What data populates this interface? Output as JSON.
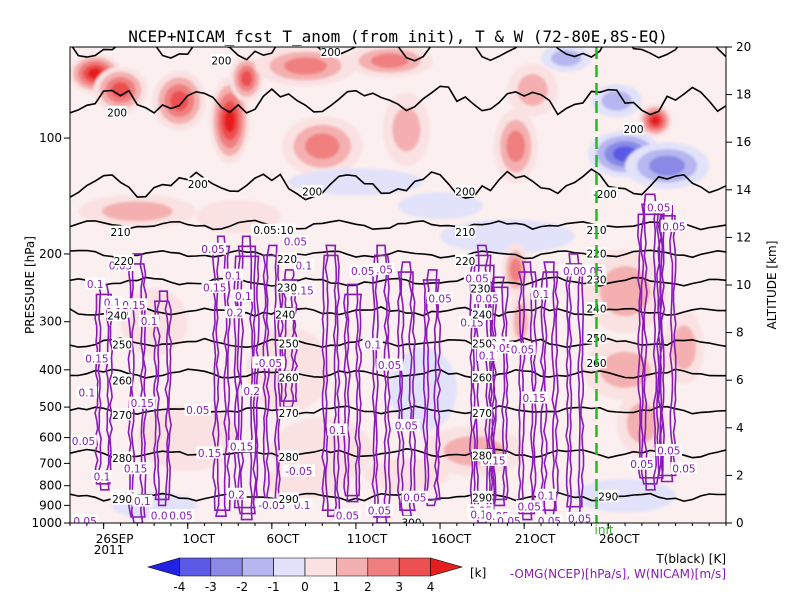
{
  "chart_data": {
    "type": "heatmap",
    "title": "NCEP+NICAM_fcst T_anom (from init), T & W  (72-80E,8S-EQ)",
    "xlabel": "",
    "ylabel_left": "PRESSURE [hPa]",
    "ylabel_right": "ALTITUDE [km]",
    "x_ticks": [
      "26SEP",
      "1OCT",
      "6OCT",
      "11OCT",
      "16OCT",
      "21OCT",
      "26OCT"
    ],
    "x_year": "2011",
    "init_label": "init",
    "x_range_days": [
      0,
      39
    ],
    "init_day": 31.3,
    "p_ticks": [
      100,
      200,
      300,
      400,
      500,
      600,
      700,
      800,
      900,
      1000
    ],
    "p_range_hpa": [
      1000,
      58
    ],
    "alt_ticks": [
      0,
      2,
      4,
      6,
      8,
      10,
      12,
      14,
      16,
      18,
      20
    ],
    "alt_range_km": [
      0,
      20
    ],
    "colorbar": {
      "ticks": [
        "-4",
        "-3",
        "-2",
        "-1",
        "0",
        "1",
        "2",
        "3",
        "4"
      ],
      "unit": "[k]",
      "colors": [
        "#2222e6",
        "#5a5ae6",
        "#8a8ae6",
        "#b6b6f0",
        "#e2e2fa",
        "#fae2e2",
        "#f4b0b0",
        "#f08080",
        "#ec5050",
        "#e61e1e"
      ]
    },
    "legend": {
      "temperature": "T(black) [K]",
      "wind": "-OMG(NCEP)[hPa/s], W(NICAM)[m/s]"
    },
    "temperature_contours": {
      "levels": [
        {
          "label": "200",
          "p": 58
        },
        {
          "label": "200",
          "p": 80
        },
        {
          "label": "200",
          "p": 132
        },
        {
          "label": "210",
          "p": 168
        },
        {
          "label": "220",
          "p": 200
        },
        {
          "label": "230",
          "p": 236
        },
        {
          "label": "240",
          "p": 282
        },
        {
          "label": "250",
          "p": 340
        },
        {
          "label": "260",
          "p": 410
        },
        {
          "label": "270",
          "p": 510
        },
        {
          "label": "280",
          "p": 660
        },
        {
          "label": "290",
          "p": 855
        }
      ]
    },
    "omega_labels": [
      "0.05",
      "0.1",
      "0.15",
      "0.2",
      "-0.05"
    ],
    "w_cells": [
      {
        "day": 2.0,
        "p_top": 240,
        "p_bot": 820,
        "intensity": 0.5
      },
      {
        "day": 4.0,
        "p_top": 200,
        "p_bot": 1000,
        "intensity": 0.7
      },
      {
        "day": 5.5,
        "p_top": 250,
        "p_bot": 900,
        "intensity": 0.6
      },
      {
        "day": 9.0,
        "p_top": 180,
        "p_bot": 960,
        "intensity": 0.5
      },
      {
        "day": 10.5,
        "p_top": 180,
        "p_bot": 980,
        "intensity": 0.8
      },
      {
        "day": 12.0,
        "p_top": 190,
        "p_bot": 900,
        "intensity": 0.6
      },
      {
        "day": 13.0,
        "p_top": 220,
        "p_bot": 500,
        "intensity": 0.4
      },
      {
        "day": 15.5,
        "p_top": 190,
        "p_bot": 960,
        "intensity": 0.6
      },
      {
        "day": 16.8,
        "p_top": 240,
        "p_bot": 880,
        "intensity": 0.5
      },
      {
        "day": 18.5,
        "p_top": 190,
        "p_bot": 1000,
        "intensity": 0.7
      },
      {
        "day": 20.0,
        "p_top": 210,
        "p_bot": 960,
        "intensity": 0.6
      },
      {
        "day": 21.5,
        "p_top": 220,
        "p_bot": 900,
        "intensity": 0.5
      },
      {
        "day": 24.5,
        "p_top": 190,
        "p_bot": 1000,
        "intensity": 0.8
      },
      {
        "day": 25.5,
        "p_top": 230,
        "p_bot": 900,
        "intensity": 0.6
      },
      {
        "day": 27.2,
        "p_top": 210,
        "p_bot": 980,
        "intensity": 0.6
      },
      {
        "day": 28.5,
        "p_top": 210,
        "p_bot": 960,
        "intensity": 0.5
      },
      {
        "day": 30.0,
        "p_top": 200,
        "p_bot": 940,
        "intensity": 0.7
      },
      {
        "day": 34.5,
        "p_top": 140,
        "p_bot": 820,
        "intensity": 0.9
      },
      {
        "day": 35.5,
        "p_top": 150,
        "p_bot": 780,
        "intensity": 0.6
      }
    ],
    "w_value_labels": [
      {
        "t": "0.05",
        "day": 3.0,
        "p": 215
      },
      {
        "t": "0.1",
        "day": 1.5,
        "p": 240
      },
      {
        "t": "0.1",
        "day": 2.5,
        "p": 268
      },
      {
        "t": "0.15",
        "day": 3.8,
        "p": 272
      },
      {
        "t": "0.15",
        "day": 2.8,
        "p": 284
      },
      {
        "t": "0.1",
        "day": 4.7,
        "p": 300
      },
      {
        "t": "0.15",
        "day": 1.6,
        "p": 375
      },
      {
        "t": "0.1",
        "day": 1.0,
        "p": 460
      },
      {
        "t": "0.15",
        "day": 4.3,
        "p": 490
      },
      {
        "t": "0.05",
        "day": 0.8,
        "p": 615
      },
      {
        "t": "0.15",
        "day": 3.9,
        "p": 725
      },
      {
        "t": "0.1",
        "day": 1.9,
        "p": 760
      },
      {
        "t": "0.05",
        "day": 3.2,
        "p": 855
      },
      {
        "t": "0.1",
        "day": 4.3,
        "p": 880
      },
      {
        "t": "0.05",
        "day": 5.5,
        "p": 960
      },
      {
        "t": "0.05",
        "day": 0.9,
        "p": 990
      },
      {
        "t": "0.05",
        "day": 6.6,
        "p": 960
      },
      {
        "t": "0.05",
        "day": 8.5,
        "p": 195
      },
      {
        "t": "0.1",
        "day": 9.7,
        "p": 228
      },
      {
        "t": "0.15",
        "day": 8.6,
        "p": 245
      },
      {
        "t": "0.1",
        "day": 10.3,
        "p": 258
      },
      {
        "t": "0.2",
        "day": 9.8,
        "p": 285
      },
      {
        "t": "0.2",
        "day": 10.8,
        "p": 455
      },
      {
        "t": "0.05",
        "day": 7.6,
        "p": 510
      },
      {
        "t": "-0.05",
        "day": 11.8,
        "p": 385
      },
      {
        "t": "0.15",
        "day": 10.2,
        "p": 635
      },
      {
        "t": "0.15",
        "day": 8.3,
        "p": 660
      },
      {
        "t": "0.2",
        "day": 9.9,
        "p": 845
      },
      {
        "t": "-0.05",
        "day": 12.0,
        "p": 900
      },
      {
        "t": "0.05",
        "day": 13.4,
        "p": 186
      },
      {
        "t": "0.1",
        "day": 13.9,
        "p": 215
      },
      {
        "t": "0.15",
        "day": 13.8,
        "p": 250
      },
      {
        "t": "-0.05",
        "day": 13.6,
        "p": 735
      },
      {
        "t": "0.1",
        "day": 13.8,
        "p": 900
      },
      {
        "t": "0.05",
        "day": 18.5,
        "p": 220
      },
      {
        "t": "0.05",
        "day": 17.4,
        "p": 222
      },
      {
        "t": "0.1",
        "day": 18.0,
        "p": 345
      },
      {
        "t": "0.05",
        "day": 19.0,
        "p": 390
      },
      {
        "t": "0.05",
        "day": 16.5,
        "p": 960
      },
      {
        "t": "0.1",
        "day": 15.9,
        "p": 575
      },
      {
        "t": "0.05",
        "day": 18.4,
        "p": 930
      },
      {
        "t": "0.05",
        "day": 20.0,
        "p": 560
      },
      {
        "t": "0.05",
        "day": 20.5,
        "p": 860
      },
      {
        "t": "0.05",
        "day": 22.0,
        "p": 262
      },
      {
        "t": "0.05",
        "day": 24.2,
        "p": 232
      },
      {
        "t": "0.05",
        "day": 24.8,
        "p": 262
      },
      {
        "t": "0.15",
        "day": 23.9,
        "p": 302
      },
      {
        "t": "0.1",
        "day": 25.5,
        "p": 342
      },
      {
        "t": "0.05",
        "day": 25.6,
        "p": 352
      },
      {
        "t": "0.1",
        "day": 24.8,
        "p": 368
      },
      {
        "t": "0.05",
        "day": 26.9,
        "p": 355
      },
      {
        "t": "0.15",
        "day": 25.2,
        "p": 690
      },
      {
        "t": "0.05",
        "day": 24.4,
        "p": 932
      },
      {
        "t": "0.1",
        "day": 24.3,
        "p": 952
      },
      {
        "t": "0.05",
        "day": 25.4,
        "p": 962
      },
      {
        "t": "0.05",
        "day": 26.1,
        "p": 990
      },
      {
        "t": "0.15",
        "day": 27.6,
        "p": 475
      },
      {
        "t": "0.1",
        "day": 28.0,
        "p": 255
      },
      {
        "t": "0.05",
        "day": 27.3,
        "p": 910
      },
      {
        "t": "0.1",
        "day": 28.3,
        "p": 850
      },
      {
        "t": "0.05",
        "day": 28.5,
        "p": 990
      },
      {
        "t": "0.00.05",
        "day": 30.5,
        "p": 222
      },
      {
        "t": "0.05",
        "day": 30.3,
        "p": 975
      },
      {
        "t": "0.05",
        "day": 35.0,
        "p": 152
      },
      {
        "t": "0.05",
        "day": 35.9,
        "p": 170
      },
      {
        "t": "0.05",
        "day": 35.6,
        "p": 650
      },
      {
        "t": "0.05",
        "day": 34.0,
        "p": 705
      },
      {
        "t": "0.05",
        "day": 36.5,
        "p": 725
      }
    ],
    "contour_labels": [
      {
        "t": "200",
        "day": 9.0,
        "p": 63
      },
      {
        "t": "200",
        "day": 15.5,
        "p": 60
      },
      {
        "t": "200",
        "day": 2.8,
        "p": 86
      },
      {
        "t": "200",
        "day": 7.6,
        "p": 132
      },
      {
        "t": "200",
        "day": 14.4,
        "p": 138
      },
      {
        "t": "200",
        "day": 23.5,
        "p": 138
      },
      {
        "t": "200",
        "day": 33.5,
        "p": 95
      },
      {
        "t": "-200",
        "day": 31.8,
        "p": 140
      },
      {
        "t": "210",
        "day": 3.0,
        "p": 176
      },
      {
        "t": "0.05:10",
        "day": 12.1,
        "p": 174
      },
      {
        "t": "210",
        "day": 23.5,
        "p": 176
      },
      {
        "t": "210",
        "day": 31.3,
        "p": 174
      },
      {
        "t": "220",
        "day": 3.2,
        "p": 209
      },
      {
        "t": "220",
        "day": 12.9,
        "p": 207
      },
      {
        "t": "220",
        "day": 23.5,
        "p": 209
      },
      {
        "t": "220",
        "day": 31.3,
        "p": 200
      },
      {
        "t": "230",
        "day": 12.9,
        "p": 245
      },
      {
        "t": "230",
        "day": 24.4,
        "p": 247
      },
      {
        "t": "230",
        "day": 31.3,
        "p": 234
      },
      {
        "t": "240",
        "day": 2.8,
        "p": 290
      },
      {
        "t": "240",
        "day": 12.8,
        "p": 288
      },
      {
        "t": "240",
        "day": 24.5,
        "p": 288
      },
      {
        "t": "240",
        "day": 31.3,
        "p": 278
      },
      {
        "t": "250",
        "day": 3.1,
        "p": 345
      },
      {
        "t": "250",
        "day": 13.0,
        "p": 343
      },
      {
        "t": "250",
        "day": 24.5,
        "p": 343
      },
      {
        "t": "250",
        "day": 31.3,
        "p": 332
      },
      {
        "t": "260",
        "day": 3.1,
        "p": 428
      },
      {
        "t": "260",
        "day": 13.0,
        "p": 420
      },
      {
        "t": "260",
        "day": 24.5,
        "p": 420
      },
      {
        "t": "260",
        "day": 31.3,
        "p": 385
      },
      {
        "t": "270",
        "day": 3.1,
        "p": 525
      },
      {
        "t": "270",
        "day": 13.0,
        "p": 520
      },
      {
        "t": "270",
        "day": 24.5,
        "p": 520
      },
      {
        "t": "280",
        "day": 3.1,
        "p": 680
      },
      {
        "t": "280",
        "day": 13.0,
        "p": 675
      },
      {
        "t": "280",
        "day": 24.5,
        "p": 670
      },
      {
        "t": "290",
        "day": 3.1,
        "p": 870
      },
      {
        "t": "290",
        "day": 13.0,
        "p": 870
      },
      {
        "t": "290",
        "day": 24.5,
        "p": 860
      },
      {
        "t": "290",
        "day": 32.0,
        "p": 855
      },
      {
        "t": "300",
        "day": 20.3,
        "p": 1000
      }
    ],
    "anomaly_blobs": [
      {
        "d": 1.5,
        "p": 68,
        "rd": 1.6,
        "rp": 0.12,
        "v": 4.5
      },
      {
        "d": 3.0,
        "p": 75,
        "rd": 1.6,
        "rp": 0.14,
        "v": 4.0
      },
      {
        "d": 6.5,
        "p": 80,
        "rd": 1.6,
        "rp": 0.18,
        "v": 3.5
      },
      {
        "d": 9.5,
        "p": 90,
        "rd": 1.2,
        "rp": 0.26,
        "v": 4.2
      },
      {
        "d": 10.5,
        "p": 70,
        "rd": 1.0,
        "rp": 0.14,
        "v": 3.5
      },
      {
        "d": 14.0,
        "p": 65,
        "rd": 3.0,
        "rp": 0.12,
        "v": 3.0
      },
      {
        "d": 19.0,
        "p": 63,
        "rd": 2.6,
        "rp": 0.1,
        "v": 2.5
      },
      {
        "d": 15.0,
        "p": 105,
        "rd": 2.4,
        "rp": 0.18,
        "v": 2.2
      },
      {
        "d": 20.0,
        "p": 95,
        "rd": 1.4,
        "rp": 0.22,
        "v": 2.0
      },
      {
        "d": 26.5,
        "p": 105,
        "rd": 1.3,
        "rp": 0.22,
        "v": 2.3
      },
      {
        "d": 27.5,
        "p": 75,
        "rd": 1.5,
        "rp": 0.16,
        "v": 1.3
      },
      {
        "d": 34.8,
        "p": 90,
        "rd": 1.0,
        "rp": 0.1,
        "v": 4.5
      },
      {
        "d": 33.0,
        "p": 110,
        "rd": 2.2,
        "rp": 0.14,
        "v": -3.8
      },
      {
        "d": 35.5,
        "p": 118,
        "rd": 2.5,
        "rp": 0.14,
        "v": -3.0
      },
      {
        "d": 32.5,
        "p": 80,
        "rd": 1.5,
        "rp": 0.1,
        "v": -2.0
      },
      {
        "d": 29.5,
        "p": 62,
        "rd": 1.5,
        "rp": 0.08,
        "v": -1.5
      },
      {
        "d": 17.0,
        "p": 130,
        "rd": 4.0,
        "rp": 0.08,
        "v": -1.0
      },
      {
        "d": 22.0,
        "p": 150,
        "rd": 2.5,
        "rp": 0.08,
        "v": -1.0
      },
      {
        "d": 4.0,
        "p": 155,
        "rd": 3.5,
        "rp": 0.1,
        "v": 1.2
      },
      {
        "d": 10.0,
        "p": 160,
        "rd": 2.5,
        "rp": 0.1,
        "v": 1.0
      },
      {
        "d": 26.0,
        "p": 180,
        "rd": 4.0,
        "rp": 0.1,
        "v": -0.8
      },
      {
        "d": 5.0,
        "p": 300,
        "rd": 2.0,
        "rp": 0.2,
        "v": 0.8
      },
      {
        "d": 26.5,
        "p": 220,
        "rd": 0.8,
        "rp": 0.16,
        "v": 2.2
      },
      {
        "d": 26.8,
        "p": 300,
        "rd": 0.7,
        "rp": 0.18,
        "v": 1.5
      },
      {
        "d": 13.0,
        "p": 400,
        "rd": 2.5,
        "rp": 0.25,
        "v": 0.8
      },
      {
        "d": 21.0,
        "p": 450,
        "rd": 2.0,
        "rp": 0.25,
        "v": -0.6
      },
      {
        "d": 7.0,
        "p": 600,
        "rd": 3.0,
        "rp": 0.2,
        "v": 0.8
      },
      {
        "d": 15.0,
        "p": 650,
        "rd": 3.0,
        "rp": 0.2,
        "v": 1.0
      },
      {
        "d": 24.0,
        "p": 650,
        "rd": 3.0,
        "rp": 0.15,
        "v": 1.2
      },
      {
        "d": 33.0,
        "p": 400,
        "rd": 2.5,
        "rp": 0.18,
        "v": 1.3
      },
      {
        "d": 34.0,
        "p": 550,
        "rd": 1.5,
        "rp": 0.2,
        "v": 1.5
      },
      {
        "d": 36.5,
        "p": 350,
        "rd": 1.2,
        "rp": 0.22,
        "v": 1.2
      },
      {
        "d": 33.0,
        "p": 250,
        "rd": 2.5,
        "rp": 0.25,
        "v": 1.4
      },
      {
        "d": 33.0,
        "p": 850,
        "rd": 3.0,
        "rp": 0.1,
        "v": -0.8
      },
      {
        "d": 5.0,
        "p": 900,
        "rd": 2.5,
        "rp": 0.08,
        "v": -0.7
      },
      {
        "d": 14.0,
        "p": 780,
        "rd": 2.5,
        "rp": 0.1,
        "v": 1.0
      },
      {
        "d": 20.0,
        "p": 750,
        "rd": 2.5,
        "rp": 0.1,
        "v": 0.7
      }
    ]
  }
}
